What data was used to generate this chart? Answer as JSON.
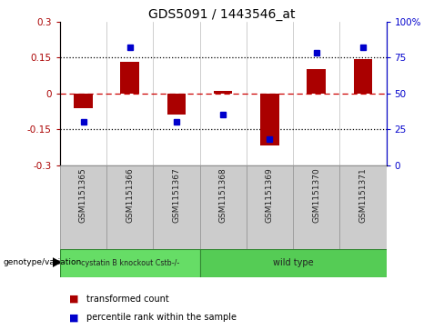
{
  "title": "GDS5091 / 1443546_at",
  "samples": [
    "GSM1151365",
    "GSM1151366",
    "GSM1151367",
    "GSM1151368",
    "GSM1151369",
    "GSM1151370",
    "GSM1151371"
  ],
  "red_bars": [
    -0.062,
    0.13,
    -0.09,
    0.008,
    -0.22,
    0.1,
    0.142
  ],
  "blue_dots": [
    30,
    82,
    30,
    35,
    18,
    78,
    82
  ],
  "ylim_left": [
    -0.3,
    0.3
  ],
  "ylim_right": [
    0,
    100
  ],
  "yticks_left": [
    -0.3,
    -0.15,
    0,
    0.15,
    0.3
  ],
  "yticks_right": [
    0,
    25,
    50,
    75,
    100
  ],
  "ytick_labels_right": [
    "0",
    "25",
    "50",
    "75",
    "100%"
  ],
  "hlines_dotted": [
    0.15,
    -0.15
  ],
  "hline_dashed": 0.0,
  "bar_color": "#aa0000",
  "dot_color": "#0000cc",
  "dashed_line_color": "#cc0000",
  "dotted_line_color": "#000000",
  "background_color": "#ffffff",
  "group0_label": "cystatin B knockout Cstb-/-",
  "group0_n": 3,
  "group0_color": "#66dd66",
  "group1_label": "wild type",
  "group1_n": 4,
  "group1_color": "#55cc55",
  "group_row_label": "genotype/variation",
  "legend_red": "transformed count",
  "legend_blue": "percentile rank within the sample",
  "sample_box_color": "#cccccc",
  "sample_box_edge": "#999999"
}
